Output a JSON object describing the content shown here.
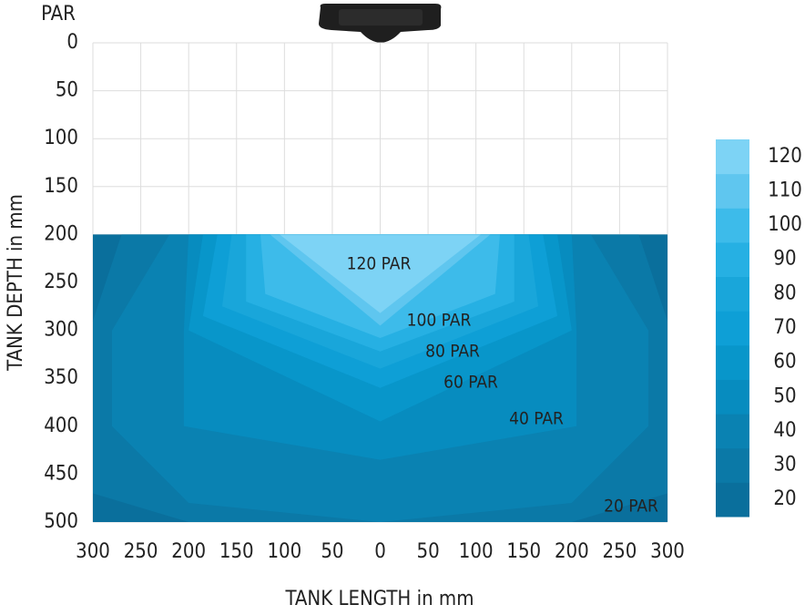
{
  "chart_data": {
    "type": "contour",
    "value_label": "PAR",
    "xlabel": "TANK LENGTH in mm",
    "ylabel": "TANK DEPTH in mm",
    "xlim": [
      -300,
      300
    ],
    "ylim": [
      0,
      500
    ],
    "y_inverted": true,
    "grid": true,
    "xticks": [
      {
        "value": -300,
        "label": "300"
      },
      {
        "value": -250,
        "label": "250"
      },
      {
        "value": -200,
        "label": "200"
      },
      {
        "value": -150,
        "label": "150"
      },
      {
        "value": -100,
        "label": "100"
      },
      {
        "value": -50,
        "label": "50"
      },
      0,
      50,
      100,
      150,
      200,
      250,
      300
    ],
    "yticks": [
      0,
      50,
      100,
      150,
      200,
      250,
      300,
      350,
      400,
      450,
      500
    ],
    "contours": [
      {
        "level": 20,
        "color": "#0a6f9c",
        "label": "20 PAR",
        "x": [
          -300,
          300,
          300,
          -300
        ],
        "y": [
          200,
          200,
          500,
          500
        ]
      },
      {
        "level": 30,
        "color": "#0b79a7",
        "x": [
          -270,
          270,
          300,
          300,
          200,
          -200,
          -300,
          -300
        ],
        "y": [
          200,
          200,
          290,
          470,
          500,
          500,
          470,
          290
        ]
      },
      {
        "level": 40,
        "color": "#0a82b2",
        "label": "40 PAR",
        "x": [
          -220,
          220,
          280,
          280,
          200,
          0,
          -200,
          -280,
          -280
        ],
        "y": [
          200,
          200,
          300,
          400,
          480,
          500,
          480,
          400,
          300
        ]
      },
      {
        "level": 50,
        "color": "#078cbf",
        "x": [
          -200,
          200,
          205,
          205,
          0,
          -205,
          -205
        ],
        "y": [
          200,
          200,
          300,
          400,
          435,
          400,
          300
        ]
      },
      {
        "level": 60,
        "color": "#0896ca",
        "label": "60 PAR",
        "x": [
          -185,
          185,
          200,
          0,
          -200
        ],
        "y": [
          200,
          200,
          300,
          395,
          300
        ]
      },
      {
        "level": 70,
        "color": "#0e9fd6",
        "x": [
          -170,
          170,
          185,
          0,
          -185
        ],
        "y": [
          200,
          200,
          285,
          360,
          285
        ]
      },
      {
        "level": 80,
        "color": "#19a6da",
        "label": "80 PAR",
        "x": [
          -155,
          155,
          165,
          0,
          -165
        ],
        "y": [
          200,
          200,
          275,
          340,
          275
        ]
      },
      {
        "level": 90,
        "color": "#26b0e3",
        "x": [
          -140,
          140,
          140,
          0,
          -140
        ],
        "y": [
          200,
          200,
          270,
          322,
          270
        ]
      },
      {
        "level": 100,
        "color": "#3dbbea",
        "label": "100 PAR",
        "x": [
          -125,
          125,
          120,
          0,
          -120
        ],
        "y": [
          200,
          200,
          262,
          308,
          262
        ]
      },
      {
        "level": 110,
        "color": "#5fc6ef",
        "x": [
          -115,
          115,
          0
        ],
        "y": [
          200,
          200,
          295
        ]
      },
      {
        "level": 120,
        "color": "#7dd3f5",
        "label": "120 PAR",
        "x": [
          -105,
          105,
          0
        ],
        "y": [
          200,
          200,
          282
        ]
      }
    ]
  }
}
